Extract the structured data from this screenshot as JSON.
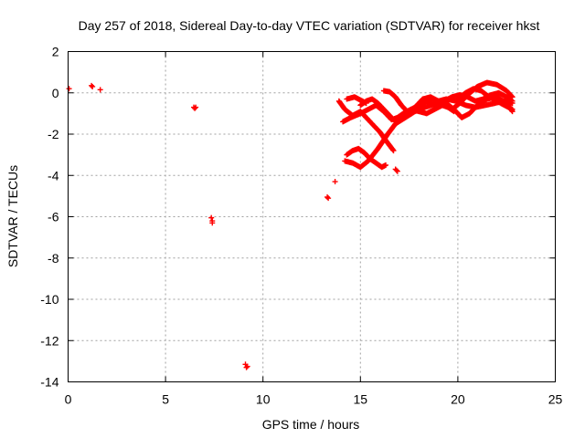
{
  "chart_data": {
    "type": "scatter",
    "title": "Day 257 of 2018, Sidereal Day-to-day VTEC variation (SDTVAR) for receiver hkst",
    "xlabel": "GPS time / hours",
    "ylabel": "SDTVAR / TECUs",
    "xlim": [
      0,
      25
    ],
    "ylim": [
      -14,
      2
    ],
    "xticks": [
      0,
      5,
      10,
      15,
      20,
      25
    ],
    "yticks": [
      2,
      0,
      -2,
      -4,
      -6,
      -8,
      -10,
      -12,
      -14
    ],
    "grid": true,
    "marker": "+",
    "color": "#ff0000",
    "isolated_points": [
      [
        0.05,
        0.2
      ],
      [
        1.2,
        0.35
      ],
      [
        1.25,
        0.3
      ],
      [
        1.65,
        0.15
      ],
      [
        6.45,
        -0.7
      ],
      [
        6.5,
        -0.75
      ],
      [
        6.55,
        -0.7
      ],
      [
        7.35,
        -6.05
      ],
      [
        7.4,
        -6.2
      ],
      [
        7.4,
        -6.3
      ],
      [
        9.1,
        -13.15
      ],
      [
        9.15,
        -13.3
      ],
      [
        9.2,
        -13.25
      ],
      [
        13.3,
        -5.05
      ],
      [
        13.35,
        -5.1
      ],
      [
        13.7,
        -4.3
      ],
      [
        16.8,
        -3.7
      ],
      [
        16.85,
        -3.75
      ],
      [
        16.9,
        -3.8
      ]
    ],
    "tracks": [
      {
        "name": "track-1",
        "x": [
          14.2,
          14.6,
          15.0,
          15.4,
          15.9,
          16.4,
          16.8,
          17.3,
          17.8,
          18.3,
          18.8,
          19.3,
          19.7,
          20.1,
          20.5,
          21.0,
          21.5,
          22.0,
          22.5,
          22.8
        ],
        "y": [
          -3.3,
          -3.4,
          -3.6,
          -3.3,
          -2.7,
          -2.0,
          -1.5,
          -1.2,
          -0.9,
          -0.7,
          -0.55,
          -0.6,
          -0.8,
          -0.5,
          -0.1,
          0.3,
          0.5,
          0.4,
          0.1,
          -0.2
        ]
      },
      {
        "name": "track-2",
        "x": [
          14.1,
          14.5,
          15.0,
          15.4,
          15.8,
          16.2,
          16.6,
          16.9,
          17.2,
          17.6,
          18.0,
          18.4,
          18.8,
          19.2,
          19.5,
          19.8
        ],
        "y": [
          -1.4,
          -1.2,
          -1.0,
          -0.8,
          -0.6,
          -0.9,
          -1.3,
          -1.2,
          -1.0,
          -0.8,
          -0.9,
          -1.0,
          -0.8,
          -0.6,
          -0.7,
          -0.9
        ]
      },
      {
        "name": "track-3",
        "x": [
          13.9,
          14.2,
          14.6,
          15.0,
          15.4,
          15.7,
          16.0,
          16.3,
          16.7
        ],
        "y": [
          -0.4,
          -0.8,
          -1.1,
          -0.9,
          -1.3,
          -1.6,
          -1.9,
          -2.3,
          -2.8
        ]
      },
      {
        "name": "track-4",
        "x": [
          15.0,
          15.3,
          15.6,
          15.9,
          16.2,
          16.5,
          16.8
        ],
        "y": [
          -0.6,
          -0.4,
          -0.3,
          -0.5,
          -0.8,
          -1.1,
          -1.4
        ]
      },
      {
        "name": "track-5",
        "x": [
          16.2,
          16.5,
          16.8,
          17.1,
          17.4,
          17.8,
          18.2,
          18.6,
          19.0,
          19.4,
          19.9,
          20.4,
          20.9,
          21.4,
          21.9,
          22.4,
          22.8
        ],
        "y": [
          0.1,
          0.05,
          -0.2,
          -0.6,
          -0.9,
          -0.7,
          -0.3,
          -0.2,
          -0.4,
          -0.3,
          -0.4,
          -0.6,
          -0.7,
          -0.6,
          -0.5,
          -0.4,
          -0.5
        ]
      },
      {
        "name": "track-6",
        "x": [
          17.0,
          17.4,
          17.8,
          18.2,
          18.6,
          19.0,
          19.4,
          19.8,
          20.2,
          20.6,
          21.0,
          21.5,
          22.0,
          22.5,
          22.8
        ],
        "y": [
          -1.2,
          -1.0,
          -0.7,
          -0.5,
          -0.3,
          -0.4,
          -0.5,
          -0.8,
          -1.2,
          -1.0,
          -0.6,
          -0.3,
          -0.2,
          -0.5,
          -0.9
        ]
      },
      {
        "name": "track-7",
        "x": [
          14.3,
          14.6,
          14.9,
          15.2,
          15.5,
          15.8,
          16.1,
          16.3
        ],
        "y": [
          -3.0,
          -2.8,
          -2.7,
          -2.9,
          -3.2,
          -3.4,
          -3.6,
          -3.5
        ]
      },
      {
        "name": "track-8",
        "x": [
          14.3,
          14.5,
          14.7,
          14.9,
          15.1,
          15.3
        ],
        "y": [
          -0.3,
          -0.25,
          -0.2,
          -0.3,
          -0.4,
          -0.5
        ]
      },
      {
        "name": "track-9",
        "x": [
          20.0,
          20.4,
          20.8,
          21.2,
          21.6,
          22.0,
          22.4,
          22.8
        ],
        "y": [
          -0.3,
          0.0,
          0.2,
          0.1,
          -0.2,
          -0.4,
          -0.6,
          -0.8
        ]
      },
      {
        "name": "track-10",
        "x": [
          18.5,
          18.9,
          19.3,
          19.7,
          20.1,
          20.5,
          20.9,
          21.3,
          21.7,
          22.1,
          22.5,
          22.8
        ],
        "y": [
          -0.5,
          -0.6,
          -0.4,
          -0.2,
          -0.1,
          -0.2,
          -0.4,
          -0.3,
          -0.1,
          0.0,
          -0.2,
          -0.4
        ]
      }
    ]
  }
}
